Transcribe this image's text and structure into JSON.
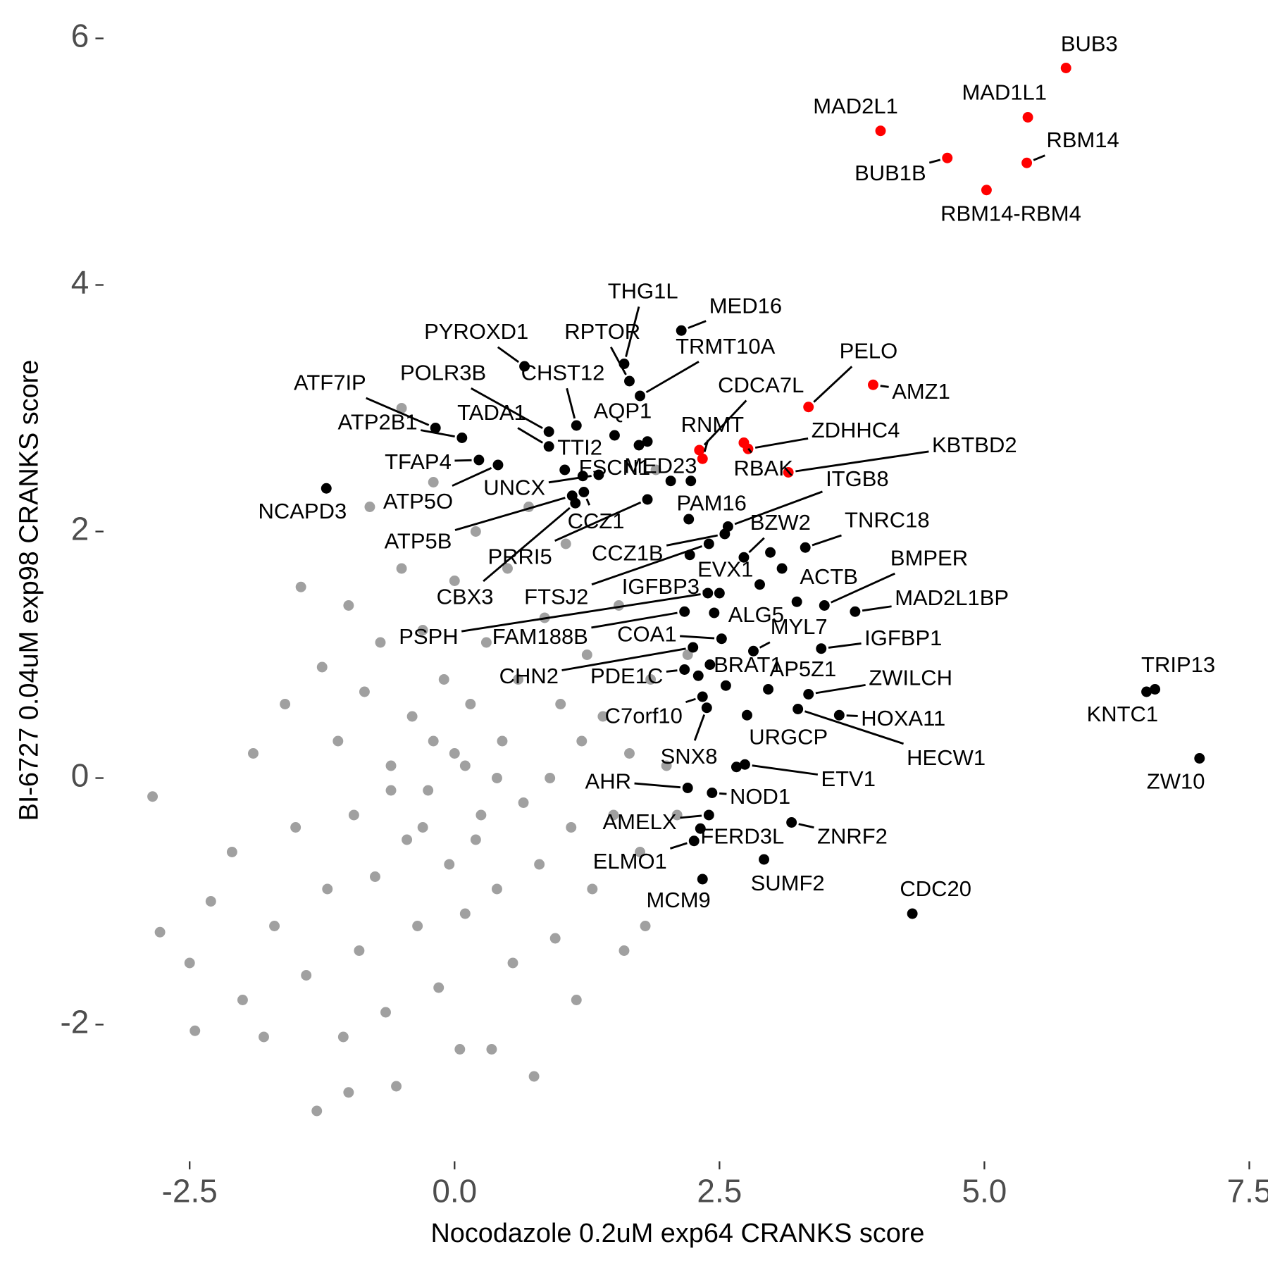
{
  "chart_data": {
    "type": "scatter",
    "x_label": "Nocodazole 0.2uM exp64 CRANKS score",
    "y_label": "BI-6727 0.04uM exp98 CRANKS score",
    "xlim": [
      -3.0,
      7.6
    ],
    "ylim": [
      -2.8,
      6.2
    ],
    "xticks": [
      -2.5,
      {
        "value": 0,
        "label": "0.0"
      },
      2.5,
      {
        "value": 5,
        "label": "5.0"
      },
      7.5
    ],
    "yticks": [
      -2,
      0,
      2,
      4,
      6
    ],
    "series": [
      {
        "color": "#a0a0a0",
        "x": [
          -2.85,
          -2.78,
          -2.5,
          -2.45,
          -2.3,
          -2.1,
          -2.0,
          -1.9,
          -1.8,
          -1.7,
          -1.6,
          -1.5,
          -1.45,
          -1.4,
          -1.3,
          -1.25,
          -1.2,
          -1.1,
          -1.05,
          -1.0,
          -1.0,
          -0.95,
          -0.9,
          -0.85,
          -0.8,
          -0.75,
          -0.7,
          -0.65,
          -0.6,
          -0.55,
          -0.5,
          -0.5,
          -0.45,
          -0.4,
          -0.35,
          -0.3,
          -0.25,
          -0.2,
          -0.15,
          -0.1,
          -0.05,
          0.0,
          0.0,
          0.05,
          0.1,
          0.15,
          0.2,
          0.25,
          0.3,
          0.35,
          0.4,
          0.45,
          0.5,
          0.55,
          0.6,
          0.65,
          0.7,
          0.75,
          0.8,
          0.85,
          0.9,
          0.95,
          1.0,
          1.05,
          1.1,
          1.15,
          1.2,
          1.25,
          1.3,
          1.4,
          1.5,
          1.55,
          1.6,
          1.65,
          1.75,
          1.8,
          1.85,
          1.9,
          2.0,
          2.1,
          2.2,
          2.73,
          -0.3,
          0.2,
          -0.6,
          0.4,
          -0.2,
          0.1
        ],
        "values": [
          -0.15,
          -1.25,
          -1.5,
          -2.05,
          -1.0,
          -0.6,
          -1.8,
          0.2,
          -2.1,
          -1.2,
          0.6,
          -0.4,
          1.55,
          -1.6,
          -2.7,
          0.9,
          -0.9,
          0.3,
          -2.1,
          -2.55,
          1.4,
          -0.3,
          -1.4,
          0.7,
          2.2,
          -0.8,
          1.1,
          -1.9,
          0.1,
          -2.5,
          3.0,
          1.7,
          -0.5,
          0.5,
          -1.2,
          1.2,
          -0.1,
          2.4,
          -1.7,
          0.8,
          -0.7,
          0.2,
          1.6,
          -2.2,
          -1.1,
          0.6,
          2.0,
          -0.3,
          1.1,
          -2.2,
          -0.9,
          0.3,
          1.7,
          -1.5,
          0.8,
          -0.2,
          2.2,
          -2.42,
          -0.7,
          1.3,
          0.0,
          -1.3,
          0.6,
          1.9,
          -0.4,
          -1.8,
          0.3,
          1.0,
          -0.9,
          0.5,
          -0.3,
          1.4,
          -1.4,
          0.2,
          -0.6,
          -1.2,
          0.8,
          2.5,
          0.1,
          -0.3,
          1.0,
          2.72,
          -0.4,
          -0.5,
          -0.1,
          0.0,
          0.3,
          0.1
        ]
      },
      {
        "color": "#000000",
        "labels": [
          "THG1L",
          "RPTOR",
          "TRMT10A",
          "MED16",
          "PYROXD1",
          "POLR3B",
          "CHST12",
          "ATF7IP",
          "ATP2B1",
          "TADA1",
          "AQP1",
          "TTI2",
          "FSCN1",
          "MED23",
          "TFAP4",
          "ATP5O",
          "UNCX",
          "NCAPD3",
          "ATP5B",
          "CBX3",
          "PRRI5",
          "CCZ1",
          "CCZ1B",
          "FTSJ2",
          "PAM16",
          "ITGB8",
          "BZW2",
          "TNRC18",
          "EVX1",
          "ACTB",
          "BMPER",
          "MAD2L1BP",
          "IGFBP3",
          "PSPH",
          "FAM188B",
          "ALG5",
          "COA1",
          "MYL7",
          "IGFBP1",
          "CHN2",
          "PDE1C",
          "BRAT1",
          "AP5Z1",
          "ZWILCH",
          "C7orf10",
          "HOXA11",
          "HECW1",
          "URGCP",
          "SNX8",
          "ETV1",
          "AHR",
          "NOD1",
          "AMELX",
          "FERD3L",
          "ZNRF2",
          "ELMO1",
          "SUMF2",
          "MCM9",
          "CDC20",
          "TRIP13",
          "KNTC1",
          "ZW10",
          null,
          null,
          null,
          null,
          null,
          null,
          null,
          null,
          null
        ],
        "x": [
          1.6,
          1.65,
          1.75,
          2.14,
          0.66,
          0.89,
          1.15,
          -0.18,
          0.07,
          0.89,
          1.51,
          1.04,
          1.21,
          1.74,
          0.23,
          0.41,
          1.36,
          -1.21,
          1.11,
          1.14,
          1.82,
          1.22,
          2.55,
          2.4,
          2.21,
          2.58,
          2.73,
          3.31,
          2.88,
          3.23,
          3.49,
          3.78,
          2.5,
          2.39,
          2.17,
          2.45,
          2.52,
          2.82,
          3.46,
          2.25,
          2.17,
          2.41,
          2.96,
          3.34,
          2.34,
          3.63,
          3.24,
          2.76,
          2.38,
          2.74,
          2.2,
          2.43,
          2.4,
          2.32,
          3.18,
          2.26,
          2.92,
          2.34,
          4.32,
          6.61,
          6.53,
          7.03,
          1.82,
          2.04,
          2.23,
          2.22,
          3.09,
          2.3,
          2.66,
          2.56,
          2.98
        ],
        "values": [
          3.36,
          3.22,
          3.1,
          3.63,
          3.34,
          2.81,
          2.86,
          2.84,
          2.76,
          2.69,
          2.78,
          2.5,
          2.45,
          2.7,
          2.58,
          2.54,
          2.46,
          2.35,
          2.29,
          2.23,
          2.26,
          2.32,
          1.98,
          1.9,
          2.1,
          2.04,
          1.79,
          1.87,
          1.57,
          1.43,
          1.4,
          1.35,
          1.5,
          1.5,
          1.35,
          1.34,
          1.13,
          1.03,
          1.05,
          1.06,
          0.88,
          0.92,
          0.72,
          0.68,
          0.66,
          0.51,
          0.56,
          0.51,
          0.57,
          0.11,
          -0.08,
          -0.12,
          -0.3,
          -0.41,
          -0.36,
          -0.51,
          -0.66,
          -0.82,
          -1.1,
          0.72,
          0.7,
          0.16,
          2.73,
          2.41,
          2.41,
          1.81,
          1.7,
          0.83,
          0.09,
          0.75,
          1.83
        ]
      },
      {
        "color": "#ff0000",
        "labels": [
          "BUB3",
          "MAD1L1",
          "MAD2L1",
          "RBM14",
          "BUB1B",
          "RBM14-RBM4",
          "PELO",
          "AMZ1",
          "CDCA7L",
          "RNMT",
          "ZDHHC4",
          "KBTBD2",
          "RBAK"
        ],
        "x": [
          5.77,
          5.41,
          4.02,
          5.4,
          4.65,
          5.02,
          3.34,
          3.95,
          2.31,
          2.34,
          2.77,
          3.15,
          2.73
        ],
        "values": [
          5.76,
          5.36,
          5.25,
          4.99,
          5.03,
          4.77,
          3.01,
          3.19,
          2.66,
          2.59,
          2.67,
          2.48,
          2.72
        ]
      }
    ]
  }
}
